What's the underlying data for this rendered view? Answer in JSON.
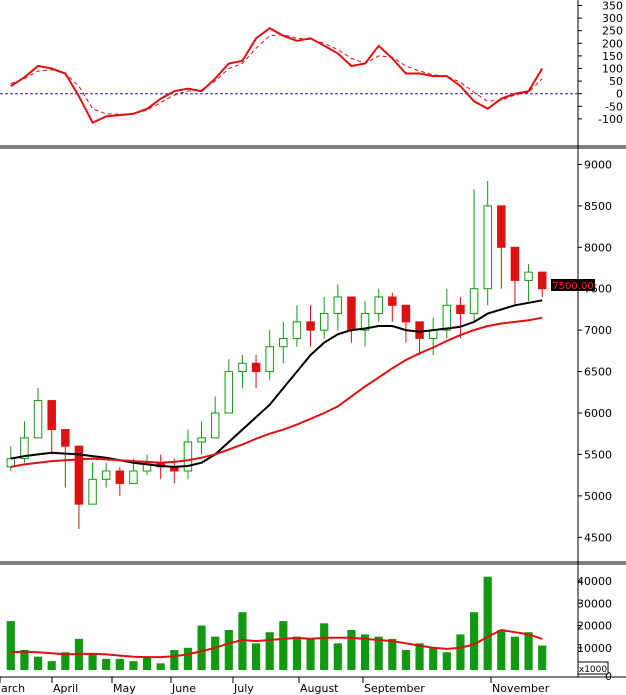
{
  "chart_data": [
    {
      "type": "line",
      "panel": "oscillator",
      "yticks": [
        350,
        300,
        250,
        200,
        150,
        100,
        50,
        0,
        -50,
        -100
      ],
      "ylim": [
        -160,
        360
      ],
      "reference_line": 0,
      "x": [
        "2024-03-01",
        "2024-03-08",
        "2024-03-15",
        "2024-03-22",
        "2024-03-29",
        "2024-04-05",
        "2024-04-12",
        "2024-04-19",
        "2024-04-26",
        "2024-05-03",
        "2024-05-10",
        "2024-05-17",
        "2024-05-24",
        "2024-05-31",
        "2024-06-07",
        "2024-06-14",
        "2024-06-21",
        "2024-06-28",
        "2024-07-05",
        "2024-07-12",
        "2024-07-19",
        "2024-07-26",
        "2024-08-02",
        "2024-08-09",
        "2024-08-16",
        "2024-08-23",
        "2024-08-30",
        "2024-09-06",
        "2024-09-13",
        "2024-09-20",
        "2024-09-27",
        "2024-10-04",
        "2024-10-11",
        "2024-10-18",
        "2024-10-25",
        "2024-11-01",
        "2024-11-08",
        "2024-11-15",
        "2024-11-22",
        "2024-11-29"
      ],
      "series": [
        {
          "color": "#dd1111",
          "style": "solid",
          "values": [
            30,
            65,
            110,
            100,
            80,
            -10,
            -115,
            -90,
            -85,
            -80,
            -60,
            -20,
            10,
            20,
            10,
            60,
            120,
            130,
            220,
            260,
            230,
            210,
            220,
            190,
            160,
            110,
            120,
            190,
            140,
            80,
            80,
            70,
            70,
            30,
            -30,
            -60,
            -20,
            0,
            10,
            100
          ]
        },
        {
          "color": "#dd1111",
          "style": "dashed",
          "values": [
            40,
            60,
            90,
            95,
            80,
            30,
            -60,
            -80,
            -82,
            -80,
            -65,
            -35,
            -5,
            10,
            15,
            50,
            100,
            120,
            180,
            230,
            235,
            220,
            215,
            200,
            175,
            140,
            120,
            150,
            145,
            110,
            90,
            75,
            70,
            45,
            5,
            -30,
            -25,
            -5,
            5,
            60
          ]
        }
      ]
    },
    {
      "type": "candlestick",
      "panel": "price",
      "yticks": [
        9000,
        8500,
        8000,
        7500,
        7000,
        6500,
        6000,
        5500,
        5000,
        4500
      ],
      "ylim": [
        4250,
        9150
      ],
      "last_price_label": "7500.00",
      "x": [
        "2024-03-01",
        "2024-03-08",
        "2024-03-15",
        "2024-03-22",
        "2024-03-29",
        "2024-04-05",
        "2024-04-12",
        "2024-04-19",
        "2024-04-26",
        "2024-05-03",
        "2024-05-10",
        "2024-05-17",
        "2024-05-24",
        "2024-05-31",
        "2024-06-07",
        "2024-06-14",
        "2024-06-21",
        "2024-06-28",
        "2024-07-05",
        "2024-07-12",
        "2024-07-19",
        "2024-07-26",
        "2024-08-02",
        "2024-08-09",
        "2024-08-16",
        "2024-08-23",
        "2024-08-30",
        "2024-09-06",
        "2024-09-13",
        "2024-09-20",
        "2024-09-27",
        "2024-10-04",
        "2024-10-11",
        "2024-10-18",
        "2024-10-25",
        "2024-11-01",
        "2024-11-08",
        "2024-11-15",
        "2024-11-22",
        "2024-11-29"
      ],
      "close": [
        5450,
        5700,
        6150,
        5800,
        5600,
        4900,
        5200,
        5300,
        5150,
        5300,
        5400,
        5350,
        5300,
        5650,
        5700,
        6000,
        6500,
        6600,
        6500,
        6800,
        6900,
        7100,
        7000,
        7200,
        7400,
        7000,
        7200,
        7400,
        7300,
        7100,
        6900,
        7000,
        7300,
        7200,
        7500,
        8500,
        8000,
        7600,
        7700,
        7500
      ],
      "high": [
        5600,
        5900,
        6300,
        6000,
        5700,
        5300,
        5400,
        5400,
        5350,
        5450,
        5500,
        5500,
        5450,
        5800,
        5900,
        6200,
        6650,
        6700,
        6700,
        7000,
        7100,
        7300,
        7300,
        7400,
        7550,
        7300,
        7350,
        7500,
        7450,
        7300,
        7100,
        7150,
        7500,
        7400,
        8700,
        8800,
        8200,
        7900,
        7800,
        7650
      ],
      "low": [
        5300,
        5400,
        5700,
        5500,
        5100,
        4600,
        4900,
        5100,
        5000,
        5150,
        5250,
        5200,
        5150,
        5200,
        5500,
        5700,
        6100,
        6300,
        6300,
        6400,
        6600,
        6800,
        6800,
        6900,
        7000,
        6850,
        6800,
        7100,
        7100,
        6850,
        6700,
        6700,
        6900,
        6900,
        7100,
        7300,
        7500,
        7300,
        7350,
        7400
      ],
      "ma_black": [
        5450,
        5480,
        5500,
        5520,
        5510,
        5500,
        5480,
        5460,
        5430,
        5400,
        5380,
        5360,
        5350,
        5360,
        5400,
        5500,
        5650,
        5800,
        5950,
        6100,
        6300,
        6500,
        6700,
        6850,
        6950,
        7000,
        7020,
        7050,
        7050,
        7000,
        6980,
        7000,
        7020,
        7040,
        7100,
        7200,
        7250,
        7300,
        7330,
        7360
      ],
      "ma_red": [
        5350,
        5380,
        5400,
        5420,
        5430,
        5440,
        5450,
        5440,
        5430,
        5420,
        5410,
        5400,
        5410,
        5430,
        5460,
        5500,
        5560,
        5620,
        5690,
        5750,
        5800,
        5860,
        5930,
        6000,
        6080,
        6200,
        6320,
        6430,
        6540,
        6640,
        6720,
        6790,
        6870,
        6940,
        7000,
        7050,
        7080,
        7100,
        7120,
        7150
      ],
      "series": [
        {
          "color": "#000000",
          "role": "ma_black"
        },
        {
          "color": "#dd1111",
          "role": "ma_red"
        }
      ]
    },
    {
      "type": "bar",
      "panel": "volume",
      "yticks": [
        40000,
        30000,
        20000,
        10000,
        0
      ],
      "ylim": [
        0,
        45000
      ],
      "unit_label": "x1000",
      "x": [
        "2024-03-01",
        "2024-03-08",
        "2024-03-15",
        "2024-03-22",
        "2024-03-29",
        "2024-04-05",
        "2024-04-12",
        "2024-04-19",
        "2024-04-26",
        "2024-05-03",
        "2024-05-10",
        "2024-05-17",
        "2024-05-24",
        "2024-05-31",
        "2024-06-07",
        "2024-06-14",
        "2024-06-21",
        "2024-06-28",
        "2024-07-05",
        "2024-07-12",
        "2024-07-19",
        "2024-07-26",
        "2024-08-02",
        "2024-08-09",
        "2024-08-16",
        "2024-08-23",
        "2024-08-30",
        "2024-09-06",
        "2024-09-13",
        "2024-09-20",
        "2024-09-27",
        "2024-10-04",
        "2024-10-11",
        "2024-10-18",
        "2024-10-25",
        "2024-11-01",
        "2024-11-08",
        "2024-11-15",
        "2024-11-22",
        "2024-11-29"
      ],
      "values": [
        22000,
        9000,
        6000,
        4000,
        8000,
        14000,
        7000,
        5000,
        5000,
        4000,
        6000,
        3000,
        9000,
        10000,
        20000,
        15000,
        18000,
        26000,
        12000,
        17000,
        22000,
        15000,
        14000,
        21000,
        12000,
        18000,
        16000,
        15000,
        14000,
        9000,
        12000,
        10000,
        8000,
        16000,
        26000,
        42000,
        18000,
        15000,
        17000,
        11000
      ],
      "ma_red": [
        8000,
        8200,
        8000,
        7500,
        7000,
        7200,
        7300,
        7000,
        6500,
        6000,
        5800,
        5800,
        6200,
        7000,
        8500,
        10000,
        12000,
        13500,
        13000,
        13500,
        14000,
        14500,
        14000,
        14500,
        14500,
        14500,
        14000,
        13500,
        13000,
        12000,
        11000,
        10000,
        9500,
        10000,
        11500,
        15000,
        18000,
        17000,
        16000,
        14000
      ],
      "colors": {
        "bar": "#119911",
        "ma": "#dd1111"
      }
    }
  ],
  "x_axis": {
    "month_labels": [
      "arch",
      "April",
      "May",
      "June",
      "July",
      "August",
      "September",
      "November"
    ]
  }
}
